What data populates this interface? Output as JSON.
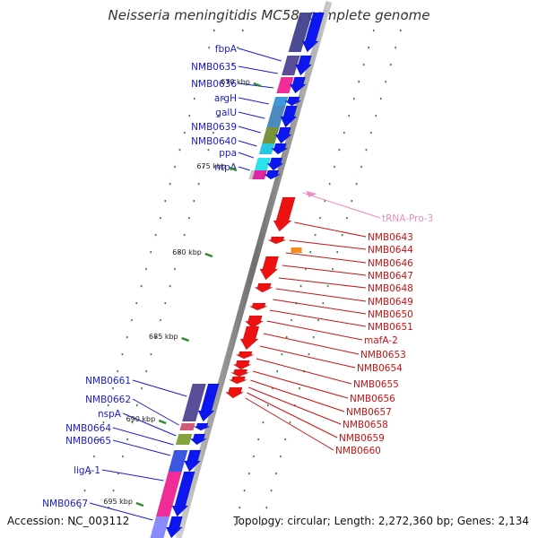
{
  "title": "Neisseria meningitidis MC58, complete genome",
  "accession": "Accession: NC_003112",
  "summary": "Topology: circular; Length: 2,272,360 bp; Genes: 2,134",
  "colors": {
    "backbone": "#7a7a7a",
    "tick": "#2e8b2e",
    "gene_blue": "#0b16f0",
    "gene_red": "#ee1111",
    "label_blue": "#1a1ad6",
    "label_red": "#cc1111",
    "trna": "#f08ac0"
  },
  "kbp_ticks": [
    "670 kbp",
    "675 kbp",
    "680 kbp",
    "685 kbp",
    "690 kbp",
    "695 kbp"
  ],
  "upper_left_labels": [
    "fbpA",
    "NMB0635",
    "NMB0636",
    "argH",
    "galU",
    "NMB0639",
    "NMB0640",
    "ppa",
    "ntpA"
  ],
  "right_labels": [
    "tRNA-Pro-3",
    "NMB0643",
    "NMB0644",
    "NMB0646",
    "NMB0647",
    "NMB0648",
    "NMB0649",
    "NMB0650",
    "NMB0651",
    "mafA-2",
    "NMB0653",
    "NMB0654",
    "NMB0655",
    "NMB0656",
    "NMB0657",
    "NMB0658",
    "NMB0659",
    "NMB0660"
  ],
  "lower_left_labels": [
    "NMB0661",
    "NMB0662",
    "nspA",
    "NMB0664",
    "NMB0665",
    "ligA-1",
    "NMB0667"
  ]
}
